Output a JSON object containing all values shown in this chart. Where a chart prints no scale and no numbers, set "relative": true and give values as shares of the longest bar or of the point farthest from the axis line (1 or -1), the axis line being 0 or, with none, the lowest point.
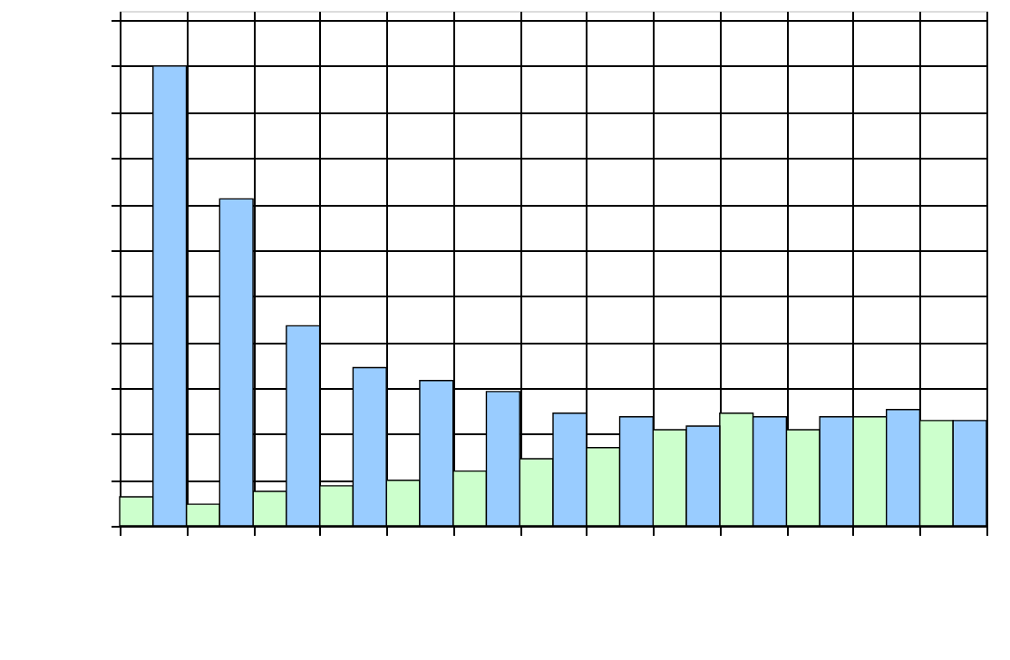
{
  "chart_data": {
    "type": "bar",
    "relative": true,
    "categories": [
      null,
      null,
      null,
      null,
      null,
      null,
      null,
      null,
      null,
      null,
      null,
      null,
      null
    ],
    "series": [
      {
        "color": "#ccffcc",
        "values": [
          0.063,
          0.047,
          0.075,
          0.087,
          0.099,
          0.119,
          0.146,
          0.17,
          0.209,
          0.245,
          0.209,
          0.237,
          0.229
        ]
      },
      {
        "color": "#99ccff",
        "values": [
          1,
          0.711,
          0.435,
          0.344,
          0.316,
          0.292,
          0.245,
          0.237,
          0.217,
          0.237,
          0.237,
          0.253,
          0.229
        ]
      }
    ],
    "grid": true
  }
}
